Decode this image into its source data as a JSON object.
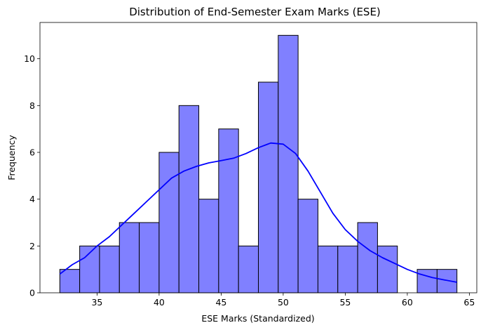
{
  "chart_data": {
    "type": "bar",
    "title": "Distribution of End-Semester Exam Marks (ESE)",
    "xlabel": "ESE Marks (Standardized)",
    "ylabel": "Frequency",
    "xlim": [
      30.4,
      65.6
    ],
    "ylim": [
      0,
      11.55
    ],
    "xticks": [
      35,
      40,
      45,
      50,
      55,
      60,
      65
    ],
    "yticks": [
      0,
      2,
      4,
      6,
      8,
      10
    ],
    "bin_start": 32,
    "bin_width": 1.6,
    "counts": [
      1,
      2,
      2,
      3,
      3,
      6,
      8,
      4,
      7,
      2,
      9,
      11,
      4,
      2,
      2,
      3,
      2,
      0,
      1,
      1
    ],
    "kde": {
      "x": [
        32,
        33,
        34,
        35,
        36,
        37,
        38,
        39,
        40,
        41,
        42,
        43,
        44,
        45,
        46,
        47,
        48,
        49,
        50,
        51,
        52,
        53,
        54,
        55,
        56,
        57,
        58,
        59,
        60,
        61,
        62,
        63,
        64
      ],
      "y": [
        0.8,
        1.2,
        1.5,
        2.0,
        2.4,
        2.9,
        3.4,
        3.9,
        4.4,
        4.9,
        5.2,
        5.4,
        5.55,
        5.65,
        5.75,
        5.95,
        6.2,
        6.4,
        6.35,
        5.95,
        5.2,
        4.3,
        3.4,
        2.7,
        2.2,
        1.8,
        1.5,
        1.25,
        1.0,
        0.8,
        0.65,
        0.55,
        0.45
      ]
    },
    "colors": {
      "bar_fill": "#8080ff",
      "bar_edge": "#000000",
      "kde_line": "#0000ff"
    },
    "grid": false,
    "legend": "none"
  }
}
